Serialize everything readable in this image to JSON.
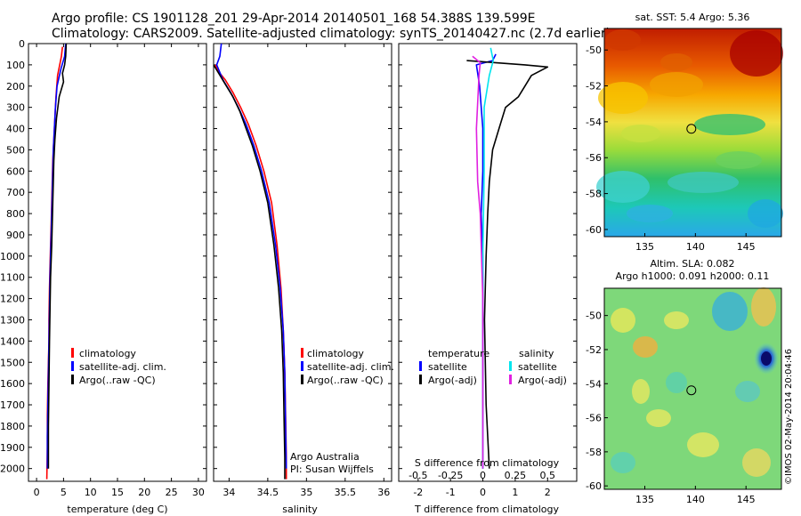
{
  "header": {
    "line1": "Argo profile: CS 1901128_201 29-Apr-2014 20140501_168 54.388S 139.599E",
    "line2": "Climatology: CARS2009. Satellite-adjusted climatology: synTS_20140427.nc (2.7d earlier)"
  },
  "colors": {
    "climatology": "#ff0000",
    "satellite_adj": "#0000ff",
    "argo": "#000000",
    "salinity_satellite": "#00e5ee",
    "salinity_argo": "#e020e0"
  },
  "chart_data": [
    {
      "type": "line",
      "id": "temperature",
      "xlabel": "temperature (deg C)",
      "ylabel": "",
      "xlim": [
        -1.5,
        31.5
      ],
      "ylim": [
        2060,
        0
      ],
      "xticks": [
        "0",
        "5",
        "10",
        "15",
        "20",
        "25",
        "30"
      ],
      "yticks": [
        "0",
        "100",
        "200",
        "300",
        "400",
        "500",
        "600",
        "700",
        "800",
        "900",
        "1000",
        "1100",
        "1200",
        "1300",
        "1400",
        "1500",
        "1600",
        "1700",
        "1800",
        "1900",
        "2000"
      ],
      "legend": [
        "climatology",
        "satellite-adj. clim.",
        "Argo(..raw -QC)"
      ],
      "series": [
        {
          "name": "climatology",
          "color_key": "climatology",
          "x": [
            4.8,
            4.6,
            3.9,
            3.6,
            3.4,
            3.2,
            3.0,
            2.9,
            2.8,
            2.7,
            2.6,
            2.5,
            2.4,
            2.3,
            2.3,
            2.2,
            2.1,
            2.0,
            2.0,
            1.9
          ],
          "y": [
            15,
            60,
            150,
            250,
            350,
            450,
            550,
            650,
            750,
            850,
            950,
            1050,
            1150,
            1300,
            1400,
            1500,
            1600,
            1750,
            1900,
            2050
          ]
        },
        {
          "name": "satellite-adj. clim.",
          "color_key": "satellite_adj",
          "x": [
            5.4,
            5.2,
            4.5,
            3.8,
            3.5,
            3.3,
            3.1,
            3.0,
            2.9,
            2.8,
            2.7,
            2.6,
            2.5,
            2.4,
            2.3,
            2.2,
            2.1,
            2.0,
            2.0
          ],
          "y": [
            0,
            60,
            120,
            200,
            300,
            400,
            500,
            600,
            700,
            800,
            900,
            1000,
            1100,
            1250,
            1400,
            1550,
            1700,
            1850,
            2000
          ]
        },
        {
          "name": "Argo(..raw -QC)",
          "color_key": "argo",
          "x": [
            5.5,
            5.4,
            5.2,
            4.8,
            5.0,
            4.2,
            3.7,
            3.4,
            3.2,
            3.1,
            3.0,
            2.9,
            2.8,
            2.6,
            2.5,
            2.4,
            2.3,
            2.2,
            2.2
          ],
          "y": [
            0,
            60,
            100,
            140,
            180,
            250,
            350,
            450,
            550,
            650,
            750,
            850,
            950,
            1100,
            1250,
            1400,
            1600,
            1800,
            2000
          ]
        }
      ]
    },
    {
      "type": "line",
      "id": "salinity",
      "xlabel": "salinity",
      "ylabel": "",
      "xlim": [
        33.8,
        36.1
      ],
      "ylim": [
        2060,
        0
      ],
      "xticks": [
        "34",
        "34.5",
        "35",
        "35.5",
        "36"
      ],
      "legend": [
        "climatology",
        "satellite-adj. clim.",
        "Argo(..raw -QC)"
      ],
      "annotations": [
        "Argo Australia",
        "PI: Susan Wijffels"
      ],
      "series": [
        {
          "name": "climatology",
          "color_key": "climatology",
          "x": [
            33.82,
            33.86,
            33.95,
            34.05,
            34.15,
            34.25,
            34.35,
            34.45,
            34.55,
            34.62,
            34.67,
            34.7,
            34.72,
            34.73,
            34.74,
            34.74
          ],
          "y": [
            100,
            130,
            170,
            230,
            300,
            380,
            480,
            600,
            750,
            950,
            1150,
            1350,
            1550,
            1750,
            1950,
            2050
          ]
        },
        {
          "name": "satellite-adj. clim.",
          "color_key": "satellite_adj",
          "x": [
            33.9,
            33.88,
            33.84,
            33.92,
            34.02,
            34.12,
            34.22,
            34.32,
            34.42,
            34.52,
            34.6,
            34.66,
            34.7,
            34.72,
            34.73,
            34.74
          ],
          "y": [
            0,
            60,
            100,
            170,
            230,
            300,
            380,
            480,
            600,
            750,
            950,
            1150,
            1350,
            1550,
            1800,
            2000
          ]
        },
        {
          "name": "Argo(..raw -QC)",
          "color_key": "argo",
          "x": [
            33.8,
            33.85,
            33.95,
            34.05,
            34.14,
            34.22,
            34.3,
            34.4,
            34.5,
            34.58,
            34.64,
            34.68,
            34.7,
            34.71,
            34.72,
            34.72
          ],
          "y": [
            100,
            130,
            190,
            250,
            320,
            400,
            480,
            600,
            750,
            950,
            1150,
            1350,
            1550,
            1750,
            1950,
            2050
          ]
        }
      ]
    },
    {
      "type": "line",
      "id": "difference",
      "xlabel": "T difference from climatology",
      "xlabel2": "S difference from climatology",
      "xlim": [
        -2.6,
        2.9
      ],
      "ylim": [
        2060,
        0
      ],
      "xticks": [
        "-2",
        "-1",
        "0",
        "1",
        "2"
      ],
      "xticks2": [
        "-0.5",
        "-0.25",
        "0",
        "0.25",
        "0.5"
      ],
      "legend": {
        "temperature_title": "temperature",
        "salinity_title": "salinity",
        "temperature_items": [
          "satellite",
          "Argo(-adj)"
        ],
        "salinity_items": [
          "satellite",
          "Argo(-adj)"
        ]
      },
      "series": [
        {
          "name": "temperature satellite",
          "color_key": "satellite_adj",
          "x": [
            0.4,
            0.3,
            -0.2,
            -0.1,
            -0.05,
            0.0,
            0.0,
            -0.05,
            0.0,
            0.0,
            0.0,
            0.0
          ],
          "y": [
            50,
            80,
            100,
            200,
            300,
            400,
            600,
            800,
            1000,
            1300,
            1600,
            2000
          ]
        },
        {
          "name": "temperature Argo(-adj)",
          "color_key": "argo",
          "x": [
            -0.5,
            1.3,
            2.0,
            1.5,
            1.3,
            1.1,
            0.7,
            0.5,
            0.3,
            0.2,
            0.15,
            0.1,
            0.05,
            0.1,
            0.2
          ],
          "y": [
            80,
            100,
            110,
            150,
            200,
            250,
            300,
            400,
            500,
            650,
            800,
            1000,
            1300,
            1700,
            2000
          ]
        },
        {
          "name": "salinity satellite",
          "color_key": "salinity_satellite",
          "x": [
            0.06,
            0.08,
            0.05,
            0.01,
            0.01,
            0.0,
            0.0,
            0.0
          ],
          "y": [
            20,
            80,
            150,
            300,
            600,
            1000,
            1500,
            2000
          ]
        },
        {
          "name": "salinity Argo(-adj)",
          "color_key": "salinity_argo",
          "x": [
            -0.08,
            -0.02,
            -0.03,
            -0.05,
            -0.04,
            -0.02,
            0.0,
            0.0,
            0.0
          ],
          "y": [
            60,
            90,
            150,
            400,
            650,
            800,
            1200,
            1600,
            2000
          ]
        }
      ]
    },
    {
      "type": "heatmap",
      "id": "sst_map",
      "title": "sat. SST: 5.4 Argo: 5.36",
      "xlim": [
        131,
        148.5
      ],
      "ylim": [
        -60.4,
        -48.8
      ],
      "xticks": [
        "135",
        "140",
        "145"
      ],
      "yticks": [
        "-50",
        "-52",
        "-54",
        "-56",
        "-58",
        "-60"
      ],
      "marker": {
        "lon": 139.6,
        "lat": -54.39
      }
    },
    {
      "type": "heatmap",
      "id": "sla_map",
      "title": "Altim. SLA: 0.082",
      "subtitle": "Argo h1000: 0.091 h2000: 0.11",
      "xlim": [
        131,
        148.5
      ],
      "ylim": [
        -60.2,
        -48.4
      ],
      "xticks": [
        "135",
        "140",
        "145"
      ],
      "yticks": [
        "-50",
        "-52",
        "-54",
        "-56",
        "-58",
        "-60"
      ],
      "marker": {
        "lon": 139.6,
        "lat": -54.39
      }
    }
  ],
  "stamp": "©IMOS 02-May-2014 20:04:46"
}
